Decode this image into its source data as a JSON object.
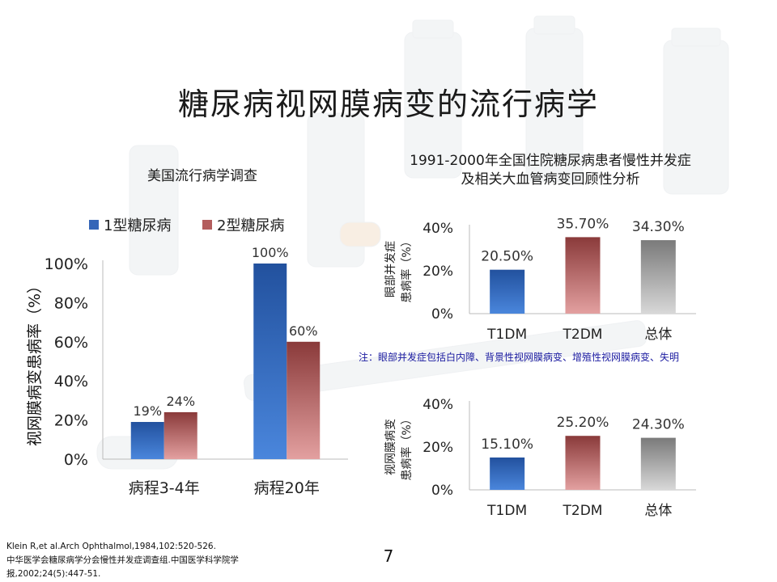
{
  "title": "糖尿病视网膜病变的流行病学",
  "left_subtitle": "美国流行病学调查",
  "right_subtitle_line1": "1991-2000年全国住院糖尿病患者慢性并发症",
  "right_subtitle_line2": "及相关大血管病变回顾性分析",
  "footnote": "注：眼部并发症包括白内障、背景性视网膜病变、增殖性视网膜病变、失明",
  "page_number": "7",
  "references": [
    "Klein R,et al.Arch Ophthalmol,1984,102:520-526.",
    "中华医学会糖尿病学分会慢性并发症调查组.中国医学科学院学",
    "报,2002;24(5):447-51."
  ],
  "colors": {
    "type1": "#2f62b5",
    "type2": "#a04848",
    "total": "#8c8c8c"
  },
  "chart_data": [
    {
      "type": "bar",
      "categories": [
        "病程3-4年",
        "病程20年"
      ],
      "series": [
        {
          "name": "1型糖尿病",
          "values": [
            19,
            100
          ],
          "labels": [
            "19%",
            "100%"
          ],
          "color": "blue"
        },
        {
          "name": "2型糖尿病",
          "values": [
            24,
            60
          ],
          "labels": [
            "24%",
            "60%"
          ],
          "color": "red"
        }
      ],
      "ylabel": "视网膜病变患病率（%）",
      "ylim": [
        0,
        100
      ],
      "yticks": [
        0,
        20,
        40,
        60,
        80,
        100
      ],
      "ytick_labels": [
        "0%",
        "20%",
        "40%",
        "60%",
        "80%",
        "100%"
      ],
      "legend": "top"
    },
    {
      "type": "bar",
      "categories": [
        "T1DM",
        "T2DM",
        "总体"
      ],
      "values": [
        20.5,
        35.7,
        34.3
      ],
      "labels": [
        "20.50%",
        "35.70%",
        "34.30%"
      ],
      "ylabel_line1": "眼部并发症",
      "ylabel_line2": "患病率（%）",
      "ylim": [
        0,
        40
      ],
      "yticks": [
        0,
        20,
        40
      ],
      "ytick_labels": [
        "0%",
        "20%",
        "40%"
      ]
    },
    {
      "type": "bar",
      "categories": [
        "T1DM",
        "T2DM",
        "总体"
      ],
      "values": [
        15.1,
        25.2,
        24.3
      ],
      "labels": [
        "15.10%",
        "25.20%",
        "24.30%"
      ],
      "ylabel_line1": "视网膜病变",
      "ylabel_line2": "患病率（%）",
      "ylim": [
        0,
        40
      ],
      "yticks": [
        0,
        20,
        40
      ],
      "ytick_labels": [
        "0%",
        "20%",
        "40%"
      ]
    }
  ]
}
